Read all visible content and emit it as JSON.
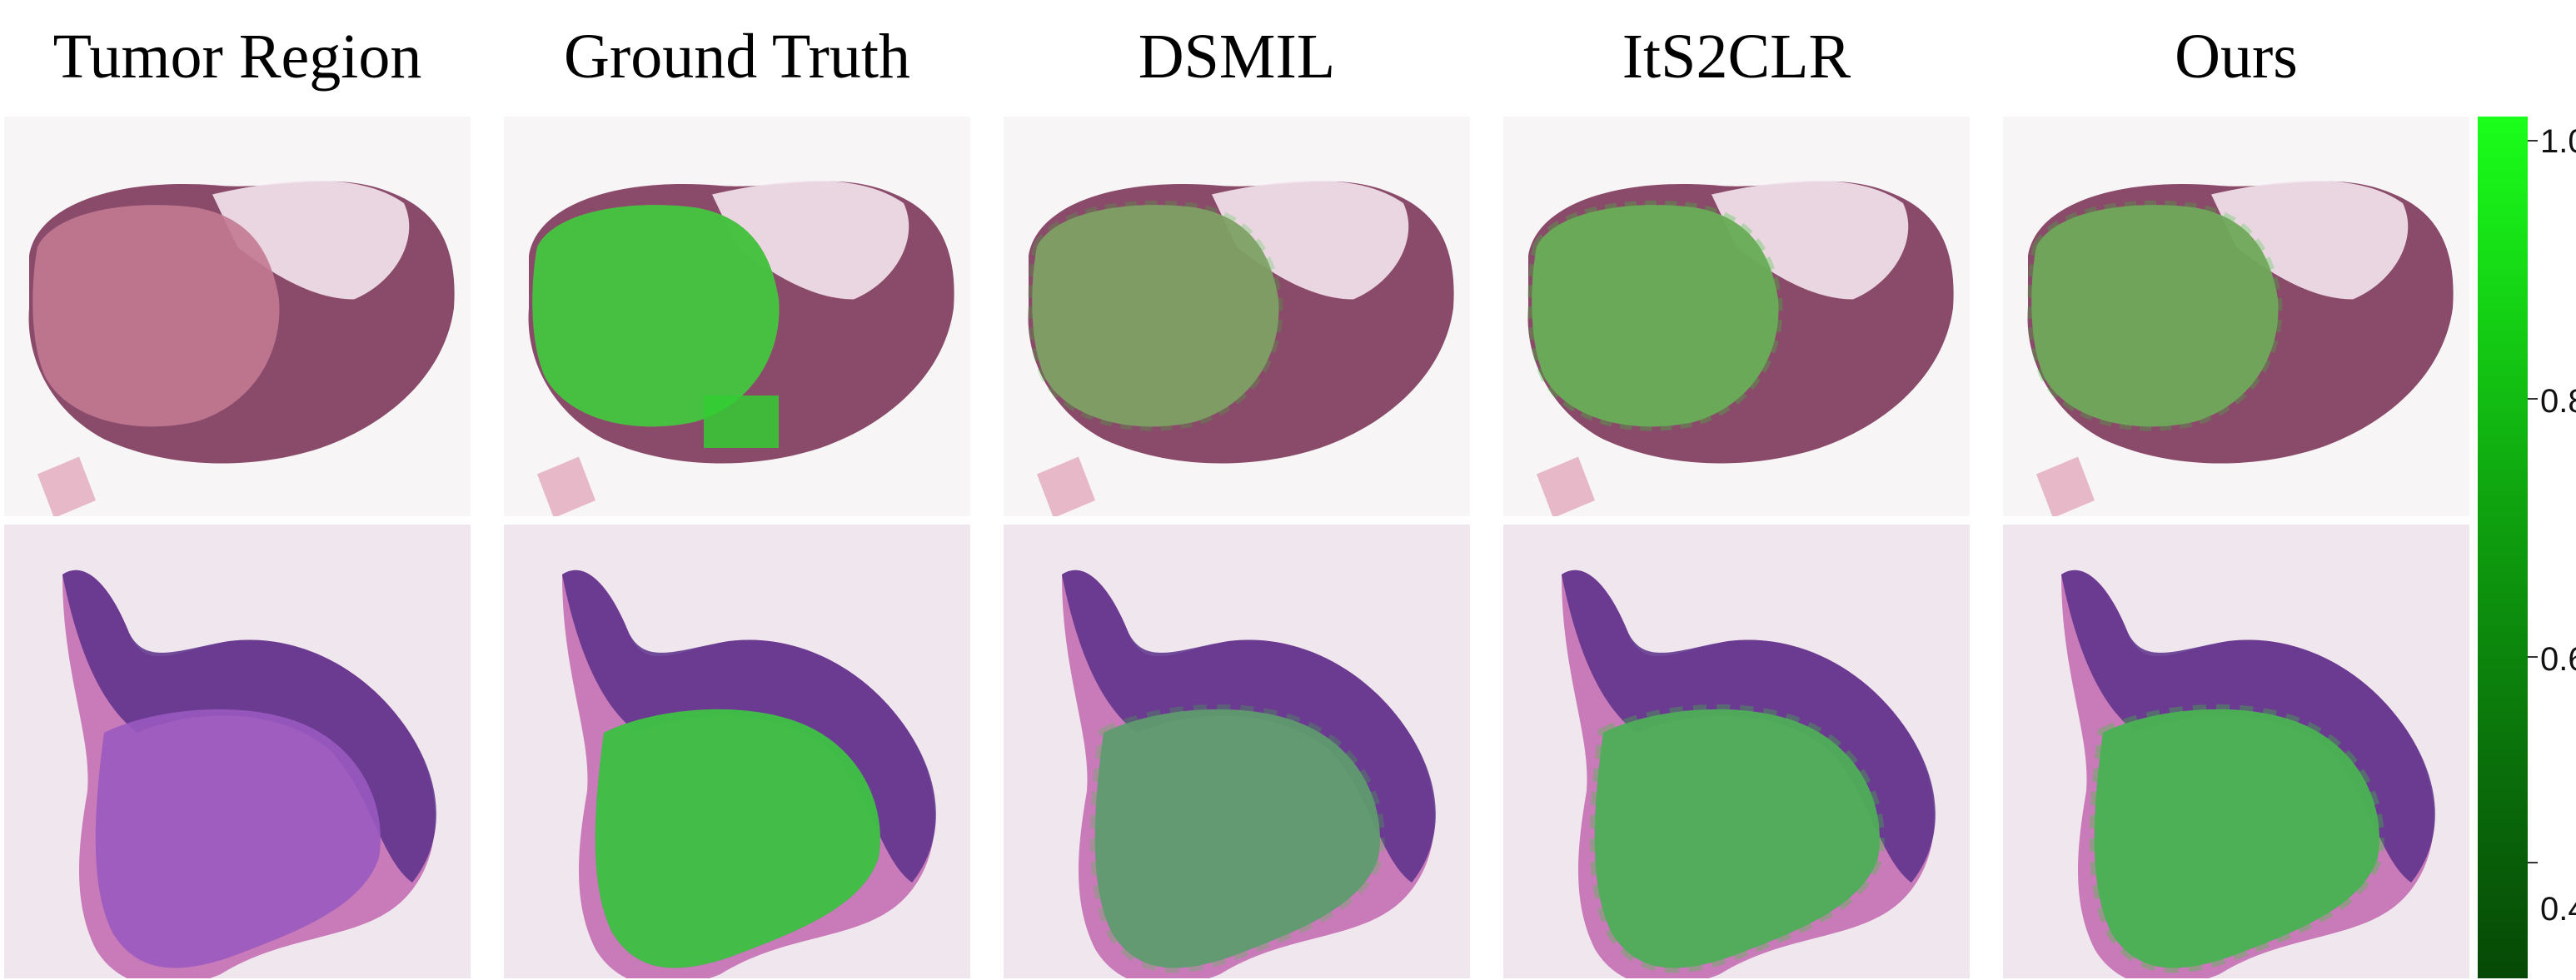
{
  "columns": [
    "Tumor Region",
    "Ground Truth",
    "DSMIL",
    "ItS2CLR",
    "Ours"
  ],
  "colorbar": {
    "ticks": [
      "1.0",
      "0.8",
      "0.6",
      "0.4"
    ],
    "color_high": "#1aff1a",
    "color_low": "#064806"
  },
  "colors": {
    "tissue_row1": "#8a4a6a",
    "tissue_row1_tumor": "#c27a92",
    "tissue_row2_stroma": "#c97ab8",
    "tissue_row2_lymph": "#5a2f8a",
    "overlay_green": "#33cc33",
    "background": "#f7f2f4"
  }
}
